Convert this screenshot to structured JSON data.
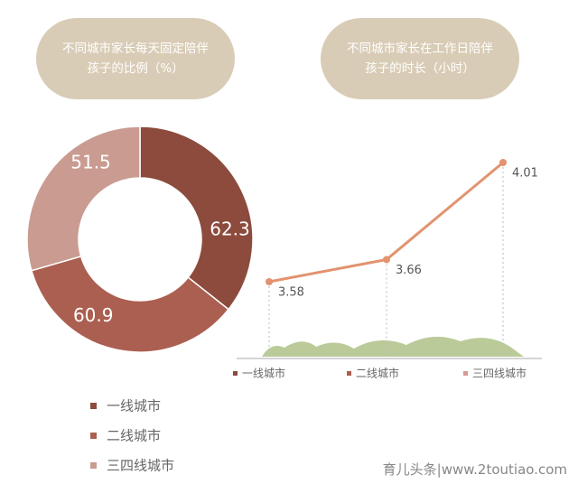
{
  "chart_data": [
    {
      "type": "donut",
      "title": "不同城市家长每天固定陪伴孩子的比例（%）",
      "categories": [
        "一线城市",
        "二线城市",
        "三四线城市"
      ],
      "values": [
        62.3,
        60.9,
        51.5
      ],
      "colors": [
        "#8c4b3d",
        "#ab5f50",
        "#c99b91"
      ]
    },
    {
      "type": "line",
      "title": "不同城市家长在工作日陪伴孩子的时长（小时）",
      "categories": [
        "一线城市",
        "二线城市",
        "三四线城市"
      ],
      "values": [
        3.58,
        3.66,
        4.01
      ],
      "color": "#e3936f",
      "legend_colors": [
        "#8c4b3d",
        "#ab5f50",
        "#d79a95"
      ]
    }
  ],
  "watermark": "育儿头条|www.2toutiao.com"
}
